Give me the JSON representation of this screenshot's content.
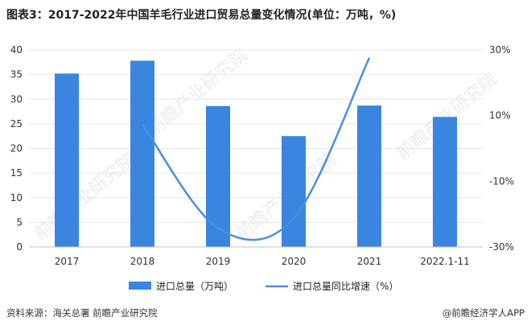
{
  "header": {
    "title": "图表3：2017-2022年中国羊毛行业进口贸易总量变化情况(单位：万吨，%)"
  },
  "footer": {
    "source": "资料来源：海关总署 前瞻产业研究院",
    "credit": "@前瞻经济学人APP"
  },
  "watermark": "前瞻产业研究院",
  "colors": {
    "bar": "#3a85e0",
    "line": "#4a90e2",
    "grid": "#e6e6e6"
  },
  "chart_data": {
    "type": "bar",
    "title": "图表3：2017-2022年中国羊毛行业进口贸易总量变化情况(单位：万吨，%)",
    "categories": [
      "2017",
      "2018",
      "2019",
      "2020",
      "2021",
      "2022.1-11"
    ],
    "series": [
      {
        "name": "进口总量（万吨）",
        "type": "bar",
        "axis": "left",
        "values": [
          35.2,
          37.8,
          28.6,
          22.5,
          28.7,
          26.4
        ]
      },
      {
        "name": "进口总量同比增速（%）",
        "type": "line",
        "axis": "right",
        "values": [
          null,
          7.4,
          -24.3,
          -21.3,
          27.6,
          null
        ]
      }
    ],
    "y_left": {
      "min": 0,
      "max": 40,
      "ticks": [
        0,
        5,
        10,
        15,
        20,
        25,
        30,
        35,
        40
      ]
    },
    "y_right": {
      "min": -30,
      "max": 30,
      "ticks": [
        -30,
        -10,
        10,
        30
      ],
      "tick_labels": [
        "-30%",
        "-10%",
        "10%",
        "30%"
      ]
    },
    "grid": true,
    "legend_position": "bottom"
  }
}
